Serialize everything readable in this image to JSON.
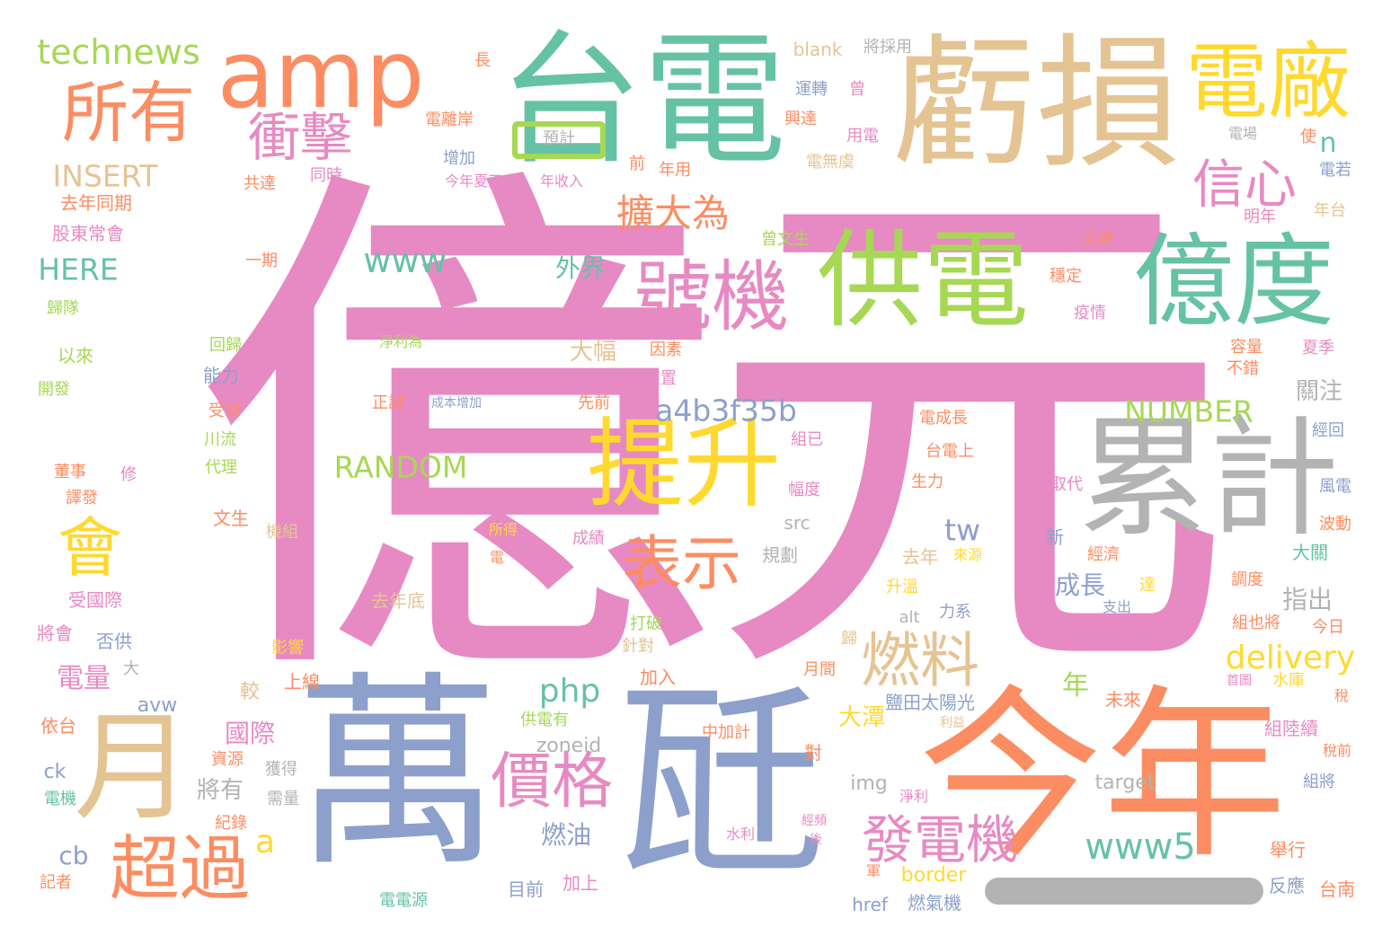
{
  "colors": {
    "pink": "#e78ac3",
    "blue": "#8da0cb",
    "orange": "#fc8d62",
    "green": "#66c2a5",
    "lime": "#a6d854",
    "yellow": "#ffd92f",
    "tan": "#e5c494",
    "gray": "#b3b3b3"
  },
  "words": {
    "yi_yuan": "億元",
    "wan": "萬",
    "wa": "瓩",
    "jin_nian": "今年",
    "kui_sun": "虧損",
    "tai_dian": "台電",
    "lei_ji": "累計",
    "gong_dian": "供電",
    "yi_du": "億度",
    "hao_ji": "號機",
    "ti_sheng": "提升",
    "dian_chang": "電廠",
    "amp": "amp",
    "suo_you": "所有",
    "yue": "月",
    "chao_guo": "超過",
    "jia_ge": "價格",
    "fa_dian_ji": "發電機",
    "ran_liao": "燃料",
    "biao_shi": "表示",
    "hui": "會",
    "xin_xin": "信心",
    "chong_ji": "衝擊",
    "kuo_da_wei": "擴大為",
    "technews": "technews",
    "insert": "INSERT",
    "here": "HERE",
    "www": "www",
    "www5": "www5",
    "random": "RANDOM",
    "a4b3f35b": "a4b3f35b",
    "number": "NUMBER",
    "delivery": "delivery",
    "php": "php",
    "tw": "tw",
    "n": "n",
    "a": "a",
    "cb": "cb",
    "ck": "ck",
    "avw": "avw",
    "zoneid": "zoneid",
    "target": "target",
    "img": "img",
    "src": "src",
    "alt": "alt",
    "href": "href",
    "border": "border",
    "blank": "blank",
    "jiang_cai_yong": "將採用",
    "zhang": "長",
    "yun_zhuan": "運轉",
    "ceng": "曾",
    "xing_da": "興達",
    "yong_dian": "用電",
    "dian_li_an": "電離岸",
    "yu_ji": "預計",
    "zeng_jia": "增加",
    "qian": "前",
    "nian_yong": "年用",
    "dian_wu_lv": "電無虞",
    "dian_chang2": "電場",
    "shi": "使",
    "dian_ruo": "電若",
    "gong_da": "共達",
    "tong_shi": "同時",
    "jin_nian_xia": "今年夏天",
    "nian_shou_ru": "年收入",
    "qu_nian_tong_qi": "去年同期",
    "gu_dong": "股東常會",
    "ceng_wen_sheng": "曾文生",
    "jian_feng": "尖峰",
    "ming_nian": "明年",
    "nian_tai": "年台",
    "yi_qi": "一期",
    "wai_jie": "外界",
    "wen_ding": "穩定",
    "yi_qing": "疫情",
    "gui_dui": "歸隊",
    "jing_li_wei": "淨利為",
    "hui_gui": "回歸",
    "yi_lai": "以來",
    "da_fu": "大幅",
    "yin_su": "因素",
    "rong_liang": "容量",
    "xia_ji": "夏季",
    "bu_cuo": "不錯",
    "neng_li": "能力",
    "tong_zong": "統總裝置",
    "kai_fa": "開發",
    "guan_zhu": "關注",
    "zheng_shi": "正試",
    "cheng_ben": "成本增加",
    "xian_qian": "先前",
    "shou_dao": "受到",
    "dian_cheng_zhang": "電成長",
    "jing_hui": "經回",
    "chuan_liu": "川流",
    "zu_yi": "組已",
    "tai_dian_shang": "台電上",
    "dong_shi": "董事",
    "xiu": "修",
    "dai_li": "代理",
    "sheng_li": "生力",
    "qu_dai": "取代",
    "feng_dian": "風電",
    "chan_fa": "譯發",
    "fu_du": "幅度",
    "wen_sheng": "文生",
    "suo_de": "所得",
    "ji_zu": "機組",
    "cheng_ji": "成績",
    "xin": "新",
    "bo_dong": "波動",
    "da_guan": "大關",
    "dian": "電",
    "gui_hua": "規劃",
    "qu_nian": "去年",
    "lai_yuan": "來源",
    "jing_ji": "經濟",
    "tiao_du": "調度",
    "shou_guo_ji": "受國際",
    "cheng_zhang": "成長",
    "da": "達",
    "zhi_chu": "指出",
    "qu_nian_di": "去年底",
    "sheng_wen": "升溫",
    "zhi_chu2": "支出",
    "jiang_hui": "將會",
    "fou_gong": "否供",
    "da_pi": "打破",
    "li_xi": "力系",
    "zu_ye_jiang": "組也將",
    "jin_ri": "今日",
    "ying_xiang": "影響",
    "zhen_dui": "針對",
    "gui": "歸",
    "dian_liang": "電量",
    "da2": "大",
    "shang_xian": "上線",
    "jiao": "較",
    "nian": "年",
    "jia_ru": "加入",
    "yue_jian": "月間",
    "shou_tu": "首圖",
    "shui_ku": "水庫",
    "shui": "稅",
    "yan_tian": "鹽田太陽光",
    "wei_lai": "未來",
    "li_yi": "利益",
    "da_tan": "大潭",
    "guo_ji": "國際",
    "gong_dian_you": "供電有",
    "zhong_jia_ji": "中加計",
    "dui": "對",
    "zu_lu_xu": "組陸續",
    "shui_qian": "稅前",
    "yi_tai": "依台",
    "zi_yuan": "資源",
    "huo_de": "獲得",
    "jiang_you": "將有",
    "xu_liang": "需量",
    "jing_li": "淨利",
    "zu_jiang": "組將",
    "dian_ji": "電機",
    "ji_lu": "紀錄",
    "ran_you": "燃油",
    "shui_li": "水利",
    "jing_pin": "經頻",
    "hou": "後",
    "ju_xing": "舉行",
    "ji_zhe": "記者",
    "jun": "軍",
    "mu_qian": "目前",
    "jia_shang": "加上",
    "fan_ying": "反應",
    "tai_nan": "台南",
    "dian_dian_yuan": "電電源",
    "ran_qi_ji": "燃氣機"
  }
}
